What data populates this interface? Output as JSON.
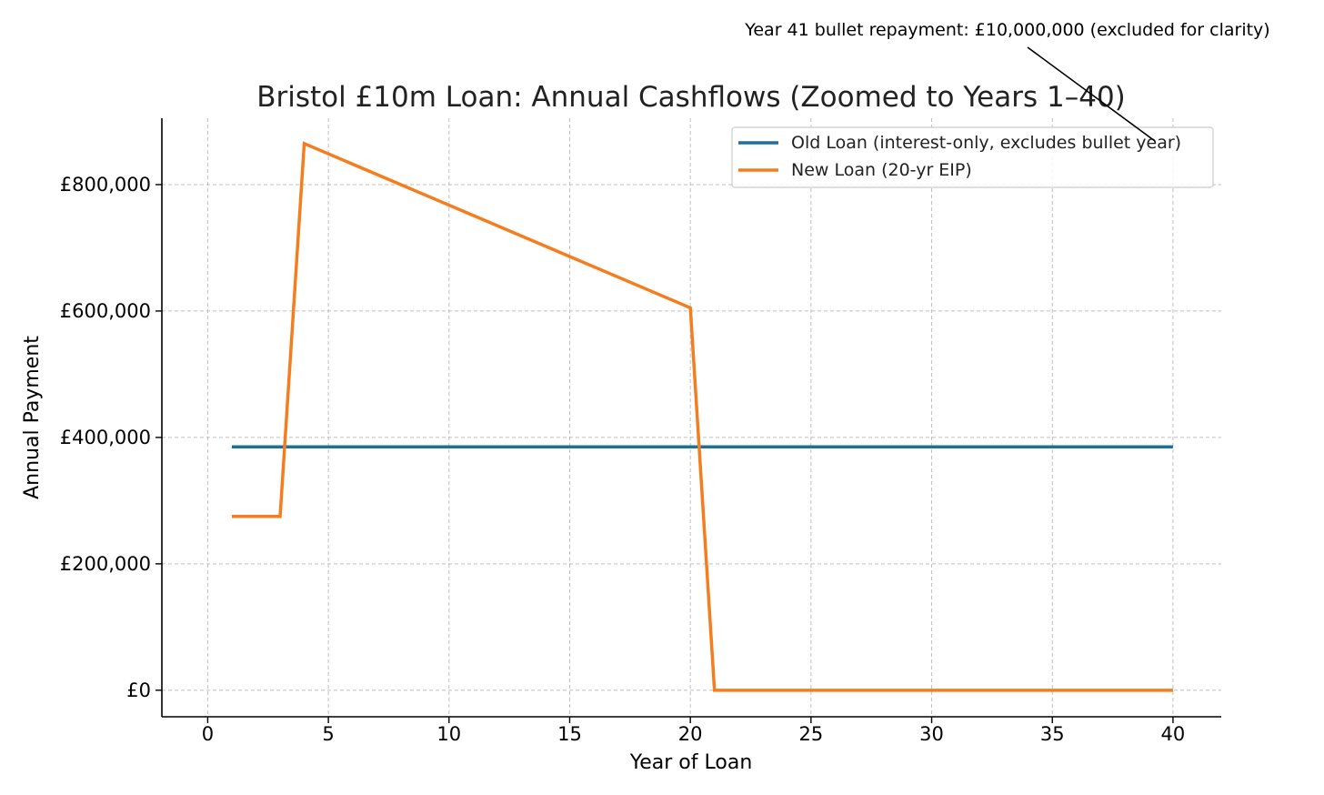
{
  "chart_data": {
    "type": "line",
    "title": "Bristol £10m Loan: Annual Cashflows (Zoomed to Years 1–40)",
    "xlabel": "Year of Loan",
    "ylabel": "Annual Payment",
    "xlim": [
      -1.9,
      42
    ],
    "ylim": [
      -42000,
      905000
    ],
    "xticks": [
      0,
      5,
      10,
      15,
      20,
      25,
      30,
      35,
      40
    ],
    "yticks": [
      0,
      200000,
      400000,
      600000,
      800000
    ],
    "ytick_labels": [
      "£0",
      "£200,000",
      "£400,000",
      "£600,000",
      "£800,000"
    ],
    "grid": true,
    "legend_position": "upper-right",
    "annotation": {
      "text": "Year 41 bullet repayment: £10,000,000 (excluded for clarity)",
      "points_to": {
        "x": 39,
        "y": 865000
      }
    },
    "series": [
      {
        "name": "Old Loan (interest-only, excludes bullet year)",
        "color": "#1f6f9b",
        "x": [
          1,
          40
        ],
        "y": [
          385000,
          385000
        ]
      },
      {
        "name": "New Loan (20-yr EIP)",
        "color": "#f47e1f",
        "x": [
          1,
          2,
          3,
          4,
          20,
          21,
          22,
          40
        ],
        "y": [
          275000,
          275000,
          275000,
          865000,
          605000,
          0,
          0,
          0
        ]
      }
    ]
  }
}
